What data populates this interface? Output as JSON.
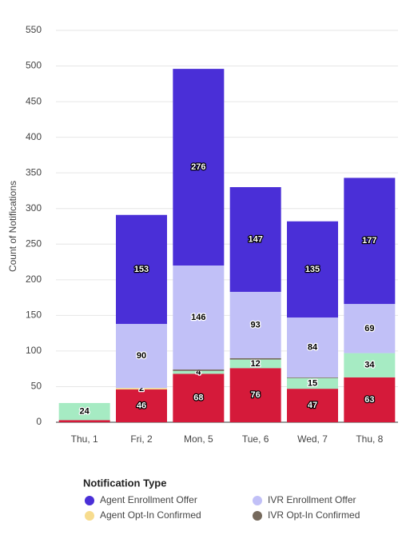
{
  "chart_data": {
    "type": "stacked_bar",
    "y_label": "Count of Notifications",
    "legend_title": "Notification Type",
    "categories": [
      "Thu, 1",
      "Fri, 2",
      "Mon, 5",
      "Tue, 6",
      "Wed, 7",
      "Thu, 8"
    ],
    "series": [
      {
        "color": "#d51a3a",
        "values": [
          3,
          46,
          68,
          76,
          47,
          63
        ],
        "value_labels": [
          null,
          "46",
          "68",
          "76",
          "47",
          "63"
        ]
      },
      {
        "color": "#a6ebc3",
        "values": [
          24,
          null,
          4,
          12,
          15,
          34
        ],
        "value_labels": [
          "24",
          null,
          "4",
          "12",
          "15",
          "34"
        ]
      },
      {
        "name": "IVR Opt-In Confirmed",
        "color": "#75695c",
        "values": [
          null,
          null,
          2,
          2,
          1,
          null
        ],
        "value_labels": [
          null,
          null,
          null,
          null,
          null,
          null
        ]
      },
      {
        "name": "Agent Opt-In Confirmed",
        "color": "#f7dc8e",
        "values": [
          null,
          2,
          null,
          null,
          null,
          null
        ],
        "value_labels": [
          null,
          "2",
          null,
          null,
          null,
          null
        ]
      },
      {
        "name": "IVR Enrollment Offer",
        "color": "#c1c0f7",
        "values": [
          null,
          90,
          146,
          93,
          84,
          69
        ],
        "value_labels": [
          null,
          "90",
          "146",
          "93",
          "84",
          "69"
        ]
      },
      {
        "name": "Agent Enrollment Offer",
        "color": "#4a2fd7",
        "values": [
          null,
          153,
          276,
          147,
          135,
          177
        ],
        "value_labels": [
          null,
          "153",
          "276",
          "147",
          "135",
          "177"
        ]
      }
    ],
    "legend_order": [
      5,
      4,
      3,
      2
    ],
    "ylim": [
      0,
      550
    ],
    "yticks": [
      0,
      50,
      100,
      150,
      200,
      250,
      300,
      350,
      400,
      450,
      500,
      550
    ],
    "grid": true
  }
}
